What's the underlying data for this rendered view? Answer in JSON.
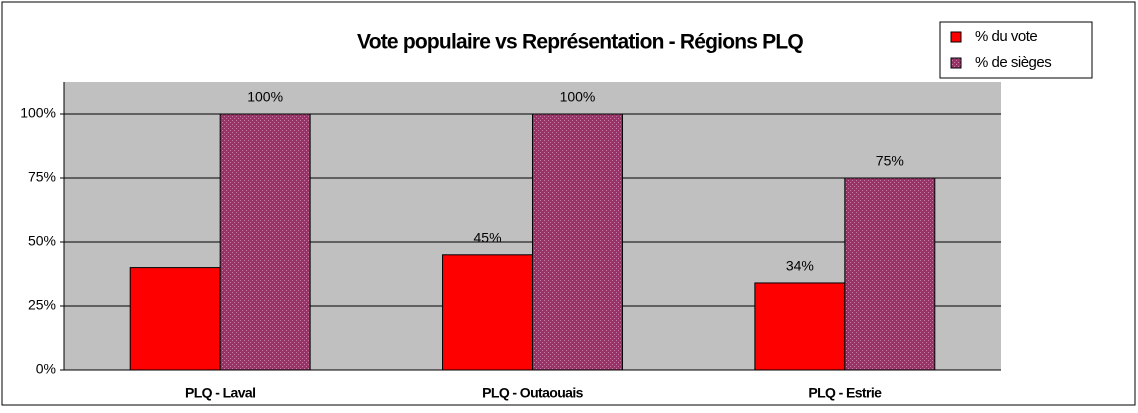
{
  "chart_data": {
    "type": "bar",
    "title": "Vote populaire vs Représentation - Régions PLQ",
    "categories": [
      "PLQ - Laval",
      "PLQ - Outaouais",
      "PLQ - Estrie"
    ],
    "series": [
      {
        "name": "% du vote",
        "color": "#ff0000",
        "values": [
          40,
          45,
          34
        ],
        "value_labels": [
          null,
          "45%",
          "34%"
        ]
      },
      {
        "name": "% de sièges",
        "color": "#993366",
        "values": [
          100,
          100,
          75
        ],
        "value_labels": [
          "100%",
          "100%",
          "75%"
        ]
      }
    ],
    "ylim": [
      0,
      112.5
    ],
    "yticks": [
      {
        "value": 0,
        "label": "0%"
      },
      {
        "value": 25,
        "label": "25%"
      },
      {
        "value": 50,
        "label": "50%"
      },
      {
        "value": 75,
        "label": "75%"
      },
      {
        "value": 100,
        "label": "100%"
      }
    ],
    "grid": true,
    "legend": "top-right"
  }
}
